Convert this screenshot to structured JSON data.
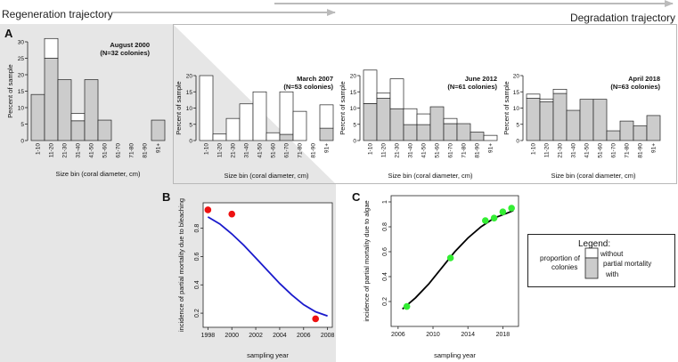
{
  "trajectories": {
    "regeneration": "Regeneration trajectory",
    "degradation": "Degradation trajectory"
  },
  "panel_letters": {
    "a": "A",
    "b": "B",
    "c": "C"
  },
  "legend": {
    "title": "Legend:",
    "without": "without",
    "partial_mortality": "partial mortality",
    "with": "with",
    "proportion_of": "proportion of",
    "colonies": "colonies"
  },
  "colors": {
    "bar_grey": "#cccccc",
    "bar_white": "#ffffff",
    "background_grey": "#e6e6e6",
    "bleaching_points": "#ee1111",
    "bleaching_curve": "#1a1acc",
    "algae_points": "#33ee33",
    "algae_curve": "#000000"
  },
  "chart_data": [
    {
      "type": "bar",
      "stacked": true,
      "title": "August 2000",
      "subtitle": "(N=32 colonies)",
      "xlabel": "Size bin (coral diameter, cm)",
      "ylabel": "Percent of sample",
      "categories": [
        "1-10",
        "11-20",
        "21-30",
        "31-40",
        "41-50",
        "51-60",
        "61-70",
        "71-80",
        "81-90",
        "91+"
      ],
      "ylim": [
        0,
        30
      ],
      "yticks": [
        0,
        5,
        10,
        15,
        20,
        25,
        30
      ],
      "series": [
        {
          "name": "with",
          "values": [
            14,
            25,
            18.5,
            6,
            18.5,
            6.2,
            0,
            0,
            0,
            6.2
          ]
        },
        {
          "name": "without",
          "values": [
            0,
            6,
            0,
            2.2,
            0,
            0,
            0,
            0,
            0,
            0
          ]
        }
      ]
    },
    {
      "type": "bar",
      "stacked": true,
      "title": "March 2007",
      "subtitle": "(N=53 colonies)",
      "xlabel": "Size bin (coral diameter, cm)",
      "ylabel": "Percent of sample",
      "categories": [
        "1-10",
        "11-20",
        "21-30",
        "31-40",
        "41-50",
        "51-60",
        "61-70",
        "71-80",
        "81-90",
        "91+"
      ],
      "ylim": [
        0,
        20
      ],
      "yticks": [
        0,
        5,
        10,
        15,
        20
      ],
      "series": [
        {
          "name": "with",
          "values": [
            0,
            0,
            0,
            0,
            0,
            0,
            1.9,
            0,
            0,
            3.8
          ]
        },
        {
          "name": "without",
          "values": [
            20,
            2,
            6.8,
            11.3,
            15,
            2.4,
            13.1,
            9,
            0,
            7.2
          ]
        }
      ]
    },
    {
      "type": "bar",
      "stacked": true,
      "title": "June 2012",
      "subtitle": "(N=61 colonies)",
      "xlabel": "Size bin (coral diameter, cm)",
      "ylabel": "Percent of sample",
      "categories": [
        "1-10",
        "11-20",
        "21-30",
        "31-40",
        "41-50",
        "51-60",
        "61-70",
        "71-80",
        "81-90",
        "91+"
      ],
      "ylim": [
        0,
        20
      ],
      "yticks": [
        0,
        5,
        10,
        15,
        20
      ],
      "series": [
        {
          "name": "with",
          "values": [
            11.4,
            13,
            9.8,
            4.9,
            4.9,
            10.4,
            5.2,
            5.2,
            2.6,
            0
          ]
        },
        {
          "name": "without",
          "values": [
            10.3,
            1.6,
            9.2,
            4.9,
            3.3,
            0,
            1.6,
            0,
            0,
            1.6
          ]
        }
      ]
    },
    {
      "type": "bar",
      "stacked": true,
      "title": "April 2018",
      "subtitle": "(N=63 colonies)",
      "xlabel": "Size bin (coral diameter, cm)",
      "ylabel": "Percent of sample",
      "categories": [
        "1-10",
        "11-20",
        "21-30",
        "31-40",
        "41-50",
        "51-60",
        "61-70",
        "71-80",
        "81-90",
        "91+"
      ],
      "ylim": [
        0,
        20
      ],
      "yticks": [
        0,
        5,
        10,
        15,
        20
      ],
      "series": [
        {
          "name": "with",
          "values": [
            13,
            11.9,
            14.5,
            9.3,
            12.7,
            12.7,
            3,
            6,
            4.5,
            7.7
          ]
        },
        {
          "name": "without",
          "values": [
            1.3,
            0.9,
            1.3,
            0,
            0,
            0,
            0,
            0,
            0,
            0
          ]
        }
      ]
    },
    {
      "type": "scatter",
      "xlabel": "sampling year",
      "ylabel": "incidence of partial mortality due to bleaching",
      "xlim": [
        1997.6,
        2008.4
      ],
      "ylim": [
        0.1,
        0.98
      ],
      "xticks": [
        1998,
        2000,
        2002,
        2004,
        2006,
        2008
      ],
      "yticks": [
        0.2,
        0.4,
        0.6,
        0.8
      ],
      "points": {
        "x": [
          1998,
          2000,
          2007
        ],
        "y": [
          0.93,
          0.9,
          0.16
        ]
      },
      "fit": {
        "x": [
          1998,
          1999,
          2000,
          2001,
          2002,
          2003,
          2004,
          2005,
          2006,
          2007,
          2008
        ],
        "y": [
          0.88,
          0.83,
          0.76,
          0.68,
          0.59,
          0.5,
          0.41,
          0.33,
          0.26,
          0.21,
          0.18
        ]
      }
    },
    {
      "type": "scatter",
      "xlabel": "sampling year",
      "ylabel": "incidence of partial mortality due to algae",
      "xlim": [
        2005.2,
        2019.8
      ],
      "ylim": [
        0,
        1.05
      ],
      "xticks": [
        2006,
        2010,
        2014,
        2018
      ],
      "yticks": [
        0.2,
        0.4,
        0.6,
        0.8,
        1.0
      ],
      "points": {
        "x": [
          2007,
          2012,
          2016,
          2017,
          2018,
          2019
        ],
        "y": [
          0.16,
          0.55,
          0.85,
          0.87,
          0.92,
          0.95
        ]
      },
      "fit": {
        "x": [
          2006.5,
          2008,
          2009.5,
          2011,
          2012.5,
          2014,
          2015.5,
          2017,
          2018.5,
          2019.2
        ],
        "y": [
          0.14,
          0.23,
          0.34,
          0.47,
          0.6,
          0.71,
          0.8,
          0.87,
          0.91,
          0.93
        ]
      }
    }
  ]
}
